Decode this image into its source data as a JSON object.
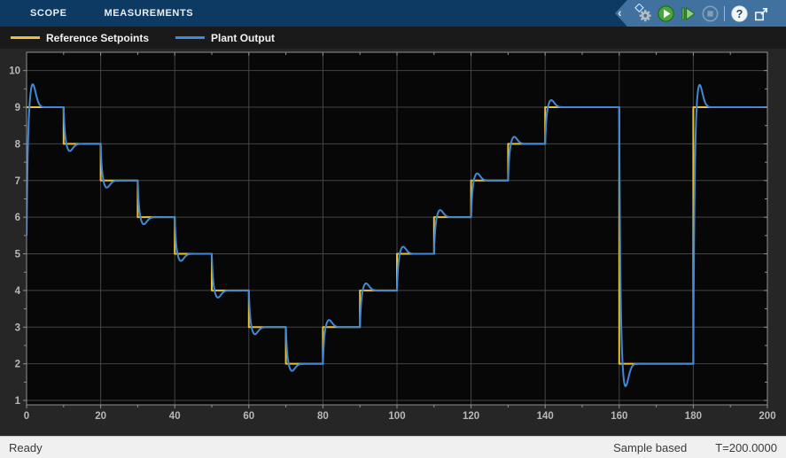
{
  "tabs": [
    {
      "label": "SCOPE"
    },
    {
      "label": "MEASUREMENTS"
    }
  ],
  "toolbar": {
    "icons": [
      "collapse-chevron-icon",
      "configuration-gear-icon",
      "run-icon",
      "step-forward-icon",
      "stop-icon",
      "help-icon",
      "popout-icon"
    ],
    "help_glyph": "?"
  },
  "legend": {
    "items": [
      {
        "label": "Reference Setpoints",
        "color": "#e9c236"
      },
      {
        "label": "Plant Output",
        "color": "#4189d6"
      }
    ]
  },
  "status": {
    "left": "Ready",
    "sample_mode": "Sample based",
    "time": "T=200.0000"
  },
  "colors": {
    "tabbar_bg": "#0d3a63",
    "toolbar_bg": "#41729f",
    "legend_bg": "#1a1a1a",
    "plot_outer_bg": "#262626",
    "plot_inner_bg": "#070707",
    "grid": "#454545",
    "axis": "#919191",
    "tick_label": "#b8b8b8",
    "statusbar_bg": "#f0f0f0"
  },
  "chart_data": {
    "type": "line",
    "title": "",
    "xlabel": "",
    "ylabel": "",
    "xlim": [
      0,
      200
    ],
    "ylim": [
      0.88,
      10.5
    ],
    "xticks": [
      0,
      20,
      40,
      60,
      80,
      100,
      120,
      140,
      160,
      180,
      200
    ],
    "yticks": [
      1,
      2,
      3,
      4,
      5,
      6,
      7,
      8,
      9,
      10
    ],
    "x_minor_step": 10,
    "y_minor_step": 0.5,
    "grid": true,
    "legend_position": "top-bar",
    "series": [
      {
        "name": "Reference Setpoints",
        "color": "#e9c236",
        "type": "staircase",
        "t_end": 200,
        "steps": [
          {
            "t": 0,
            "level": 9
          },
          {
            "t": 10,
            "level": 8
          },
          {
            "t": 20,
            "level": 7
          },
          {
            "t": 30,
            "level": 6
          },
          {
            "t": 40,
            "level": 5
          },
          {
            "t": 50,
            "level": 4
          },
          {
            "t": 60,
            "level": 3
          },
          {
            "t": 70,
            "level": 2
          },
          {
            "t": 80,
            "level": 3
          },
          {
            "t": 90,
            "level": 4
          },
          {
            "t": 100,
            "level": 5
          },
          {
            "t": 110,
            "level": 6
          },
          {
            "t": 120,
            "level": 7
          },
          {
            "t": 130,
            "level": 8
          },
          {
            "t": 140,
            "level": 9
          },
          {
            "t": 160,
            "level": 2
          },
          {
            "t": 180,
            "level": 9
          }
        ]
      },
      {
        "name": "Plant Output",
        "color": "#4189d6",
        "type": "tracking-response",
        "initial_value": 5.5,
        "dynamics": {
          "rise_tau": 0.32,
          "peak_time": 1.6,
          "overshoot_frac": 0.2,
          "overshoot_max": 0.65
        }
      }
    ]
  }
}
